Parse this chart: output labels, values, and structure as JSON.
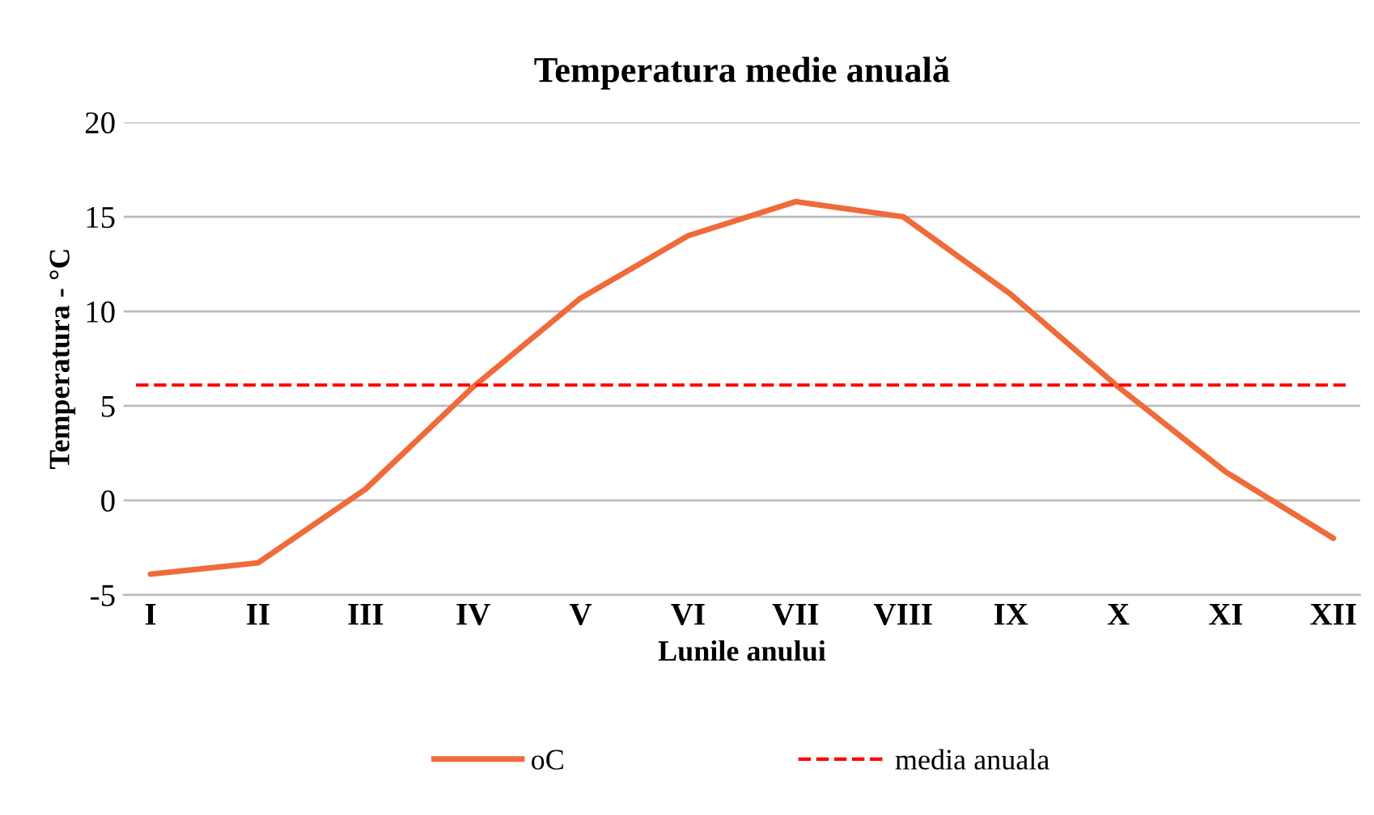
{
  "chart_data": {
    "type": "line",
    "title": "Temperatura medie anuală",
    "xlabel": "Lunile anului",
    "ylabel": "Temperatura - °C",
    "categories": [
      "I",
      "II",
      "III",
      "IV",
      "V",
      "VI",
      "VII",
      "VIII",
      "IX",
      "X",
      "XI",
      "XII"
    ],
    "series": [
      {
        "name": "oC",
        "color": "#f06a3a",
        "values": [
          -3.9,
          -3.3,
          0.6,
          6.0,
          10.7,
          14.0,
          15.8,
          15.0,
          10.9,
          6.0,
          1.5,
          -2.0
        ]
      }
    ],
    "ref_lines": [
      {
        "axis": "y",
        "value": 6.1,
        "label": "media anuala",
        "color": "#ff0000",
        "line_style": "dashed"
      }
    ],
    "ylim": [
      -5,
      20
    ],
    "yticks": [
      -5,
      0,
      5,
      10,
      15,
      20
    ],
    "grid": "y",
    "legend": "bottom",
    "marker": "none",
    "line_style": "solid"
  }
}
